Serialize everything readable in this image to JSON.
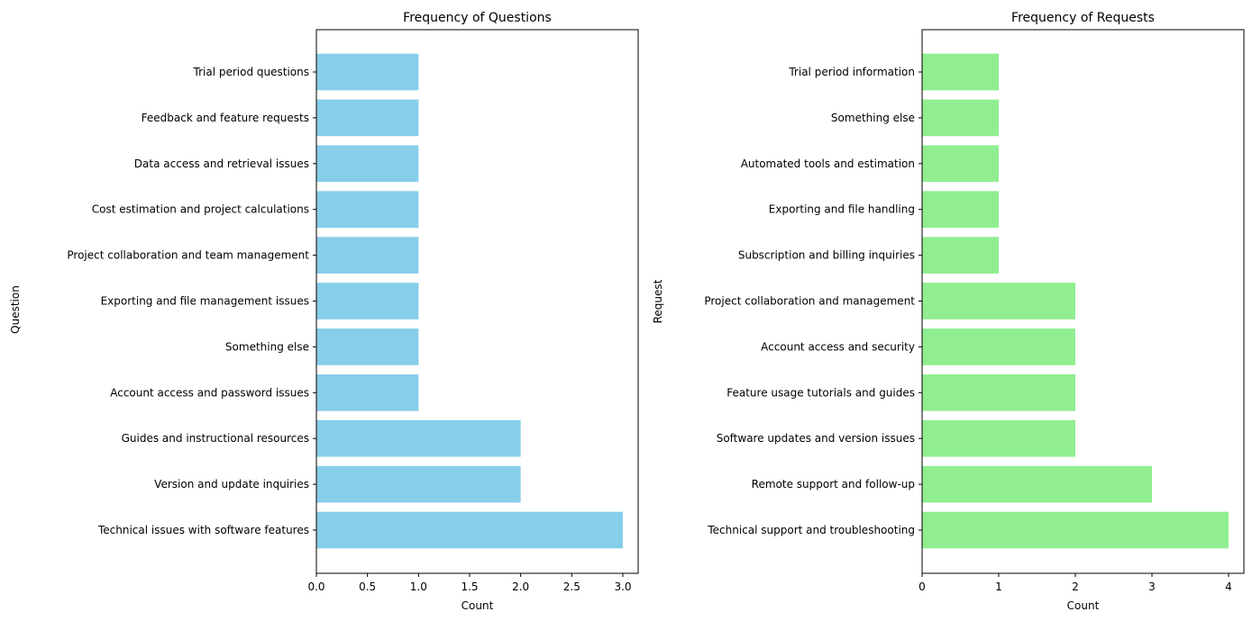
{
  "chart_data": [
    {
      "type": "bar",
      "orientation": "horizontal",
      "title": "Frequency of Questions",
      "xlabel": "Count",
      "ylabel": "Question",
      "xlim": [
        0,
        3.15
      ],
      "xticks": [
        "0.0",
        "0.5",
        "1.0",
        "1.5",
        "2.0",
        "2.5",
        "3.0"
      ],
      "xtick_values": [
        0,
        0.5,
        1,
        1.5,
        2,
        2.5,
        3
      ],
      "color": "#87CEEB",
      "categories": [
        "Technical issues with software features",
        "Version and update inquiries",
        "Guides and instructional resources",
        "Account access and password issues",
        "Something else",
        "Exporting and file management issues",
        "Project collaboration and team management",
        "Cost estimation and project calculations",
        "Data access and retrieval issues",
        "Feedback and feature requests",
        "Trial period questions"
      ],
      "values": [
        3,
        2,
        2,
        1,
        1,
        1,
        1,
        1,
        1,
        1,
        1
      ]
    },
    {
      "type": "bar",
      "orientation": "horizontal",
      "title": "Frequency of Requests",
      "xlabel": "Count",
      "ylabel": "Request",
      "xlim": [
        0,
        4.2
      ],
      "xticks": [
        "0",
        "1",
        "2",
        "3",
        "4"
      ],
      "xtick_values": [
        0,
        1,
        2,
        3,
        4
      ],
      "color": "#90EE90",
      "categories": [
        "Technical support and troubleshooting",
        "Remote support and follow-up",
        "Software updates and version issues",
        "Feature usage tutorials and guides",
        "Account access and security",
        "Project collaboration and management",
        "Subscription and billing inquiries",
        "Exporting and file handling",
        "Automated tools and estimation",
        "Something else",
        "Trial period information"
      ],
      "values": [
        4,
        3,
        2,
        2,
        2,
        2,
        1,
        1,
        1,
        1,
        1
      ]
    }
  ]
}
